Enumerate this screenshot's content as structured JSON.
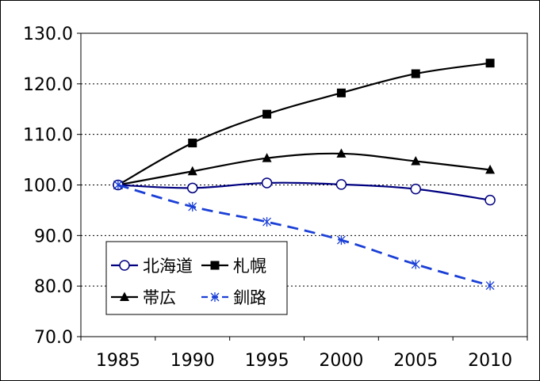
{
  "chart_data": {
    "type": "line",
    "x": [
      1985,
      1990,
      1995,
      2000,
      2005,
      2010
    ],
    "x_tick_labels": [
      "1985",
      "1990",
      "1995",
      "2000",
      "2005",
      "2010"
    ],
    "y_tick_labels": [
      "70.0",
      "80.0",
      "90.0",
      "100.0",
      "110.0",
      "120.0",
      "130.0"
    ],
    "ylim": [
      70,
      130
    ],
    "grid": "horizontal dotted",
    "legend_position": "lower-left",
    "series": [
      {
        "name": "北海道",
        "marker": "circle-open",
        "line": "solid",
        "color": "#000080",
        "values": [
          100.0,
          99.4,
          100.4,
          100.1,
          99.2,
          97.0
        ]
      },
      {
        "name": "札幌",
        "marker": "square",
        "line": "solid",
        "color": "#000000",
        "values": [
          100.0,
          108.3,
          114.0,
          118.2,
          122.0,
          124.1
        ]
      },
      {
        "name": "帯広",
        "marker": "triangle",
        "line": "solid",
        "color": "#000000",
        "values": [
          100.0,
          102.7,
          105.3,
          106.2,
          104.7,
          103.0
        ]
      },
      {
        "name": "釧路",
        "marker": "asterisk",
        "line": "dashed",
        "color": "#1a3fd6",
        "values": [
          100.0,
          95.7,
          92.7,
          89.1,
          84.3,
          80.1
        ]
      }
    ]
  }
}
